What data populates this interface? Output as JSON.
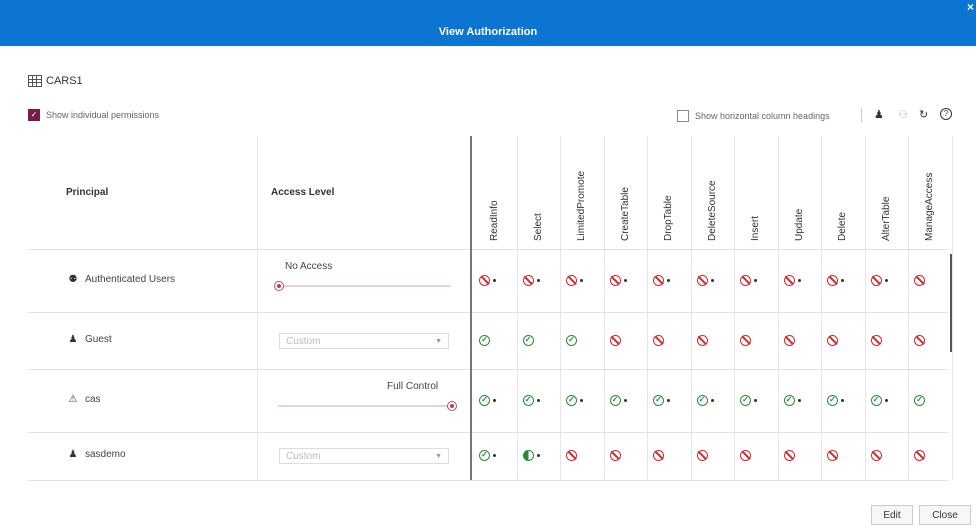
{
  "window": {
    "title": "View Authorization",
    "close_symbol": "×"
  },
  "object_name": "CARS1",
  "options": {
    "show_individual": {
      "label": "Show individual permissions",
      "checked": true
    },
    "show_horizontal": {
      "label": "Show horizontal column headings",
      "checked": false
    }
  },
  "toolbar_icons": [
    "user-icon",
    "group-icon",
    "refresh-icon",
    "help-icon"
  ],
  "headers": {
    "principal": "Principal",
    "access_level": "Access Level"
  },
  "permission_columns": [
    "ReadInfo",
    "Select",
    "LimitedPromote",
    "CreateTable",
    "DropTable",
    "DeleteSource",
    "Insert",
    "Update",
    "Delete",
    "AlterTable",
    "ManageAccess"
  ],
  "rows": [
    {
      "principal": "Authenticated Users",
      "icon": "group-icon",
      "access": {
        "type": "slider",
        "label": "No Access",
        "level": 0
      },
      "perms": [
        "deny",
        "deny",
        "deny",
        "deny",
        "deny",
        "deny",
        "deny",
        "deny",
        "deny",
        "deny",
        "deny"
      ],
      "dots": [
        true,
        true,
        true,
        true,
        true,
        true,
        true,
        true,
        true,
        true,
        false
      ]
    },
    {
      "principal": "Guest",
      "icon": "user-icon",
      "access": {
        "type": "select",
        "label": "Custom"
      },
      "perms": [
        "grant",
        "grant",
        "grant",
        "deny",
        "deny",
        "deny",
        "deny",
        "deny",
        "deny",
        "deny",
        "deny"
      ],
      "dots": [
        false,
        false,
        false,
        false,
        false,
        false,
        false,
        false,
        false,
        false,
        false
      ]
    },
    {
      "principal": "cas",
      "icon": "warning-icon",
      "access": {
        "type": "slider",
        "label": "Full Control",
        "level": 1
      },
      "perms": [
        "grant",
        "grant",
        "grant",
        "grant",
        "grant",
        "grant",
        "grant",
        "grant",
        "grant",
        "grant",
        "grant"
      ],
      "dots": [
        true,
        true,
        true,
        true,
        true,
        true,
        true,
        true,
        true,
        true,
        false
      ]
    },
    {
      "principal": "sasdemo",
      "icon": "user-icon",
      "access": {
        "type": "select",
        "label": "Custom"
      },
      "perms": [
        "grant",
        "partial",
        "deny",
        "deny",
        "deny",
        "deny",
        "deny",
        "deny",
        "deny",
        "deny",
        "deny"
      ],
      "dots": [
        true,
        true,
        false,
        false,
        false,
        false,
        false,
        false,
        false,
        false,
        false
      ]
    }
  ],
  "buttons": {
    "edit": "Edit",
    "close": "Close"
  }
}
